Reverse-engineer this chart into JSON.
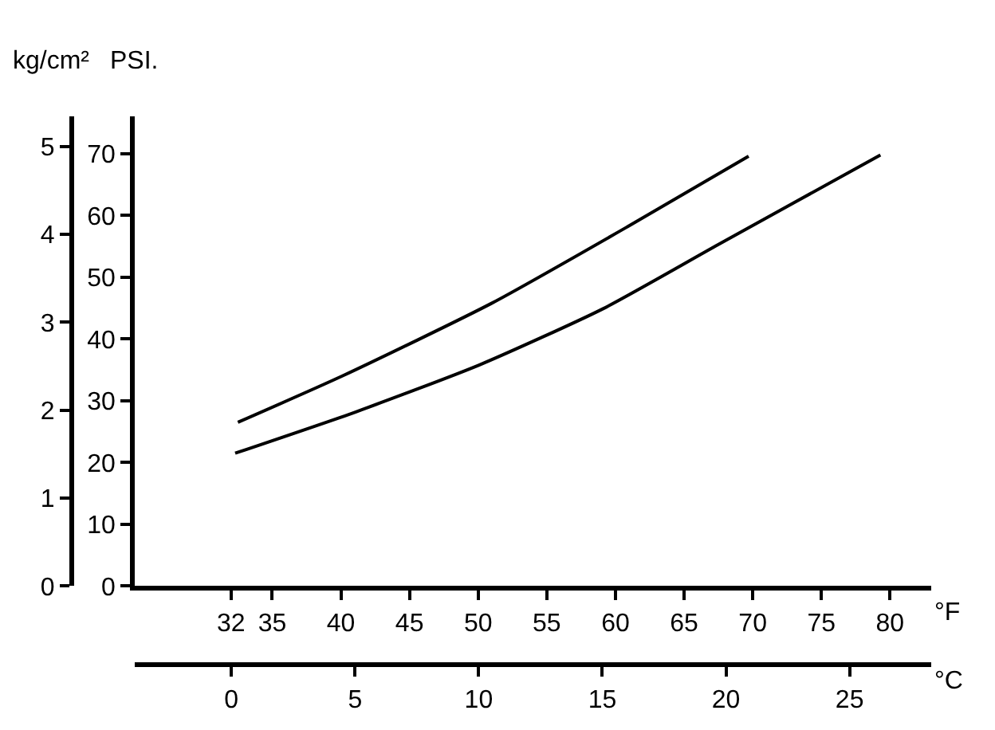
{
  "chart_data": {
    "type": "line",
    "ylabel": "PSI.",
    "y2label": "kg/cm²",
    "xlabel": "°F",
    "x2label": "°C",
    "series": [
      {
        "color": "#000000",
        "x": [
          32.5,
          40.2,
          51.0,
          60.9,
          69.7
        ],
        "values": [
          26.5,
          34.1,
          45.8,
          58.2,
          69.6
        ]
      },
      {
        "color": "#000000",
        "x": [
          32.3,
          41.1,
          50.1,
          59.1,
          67.5,
          79.3
        ],
        "values": [
          21.5,
          28.2,
          35.8,
          44.9,
          55.3,
          69.8
        ]
      }
    ],
    "xlim": [
      25,
      83
    ],
    "xticks": [
      32,
      35,
      40,
      45,
      50,
      55,
      60,
      65,
      70,
      75,
      80
    ],
    "x2lim": [
      -3.9,
      28.3
    ],
    "x2ticks": [
      0,
      5,
      10,
      15,
      20,
      25
    ],
    "ylim": [
      0,
      76
    ],
    "yticks": [
      0,
      10,
      20,
      30,
      40,
      50,
      60,
      70
    ],
    "y2lim": [
      0,
      5.34
    ],
    "y2ticks": [
      0,
      1,
      2,
      3,
      4,
      5
    ],
    "marker": "none",
    "line_style": "solid"
  }
}
